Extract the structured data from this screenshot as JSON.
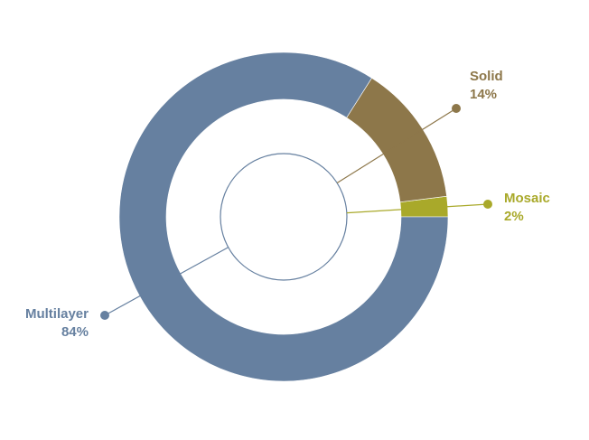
{
  "chart_data": {
    "type": "pie",
    "style": "donut",
    "categories": [
      "Multilayer",
      "Solid",
      "Mosaic"
    ],
    "values": [
      84,
      14,
      2
    ],
    "labels": [
      "84%",
      "14%",
      "2%"
    ],
    "colors": [
      "#6680a0",
      "#8d774a",
      "#a9a92a"
    ],
    "title": "",
    "legend": "none"
  }
}
